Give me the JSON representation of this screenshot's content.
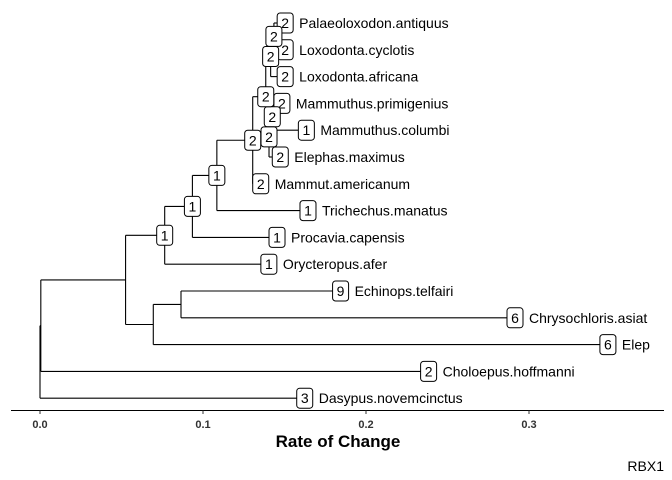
{
  "x_axis": {
    "title": "Rate of Change",
    "min": -0.018,
    "max": 0.38,
    "ticks": [
      {
        "value": 0.0,
        "label": "0.0"
      },
      {
        "value": 0.1,
        "label": "0.1"
      },
      {
        "value": 0.2,
        "label": "0.2"
      },
      {
        "value": 0.3,
        "label": "0.3"
      }
    ]
  },
  "caption": "RBX1",
  "tips": [
    {
      "id": "t1",
      "label": "Palaeoloxodon.antiquus",
      "x": 0.1455,
      "badge": "2",
      "row": 1
    },
    {
      "id": "t2",
      "label": "Loxodonta.cyclotis",
      "x": 0.1455,
      "badge": "2",
      "row": 2
    },
    {
      "id": "t3",
      "label": "Loxodonta.africana",
      "x": 0.1455,
      "badge": "2",
      "row": 3
    },
    {
      "id": "t4",
      "label": "Mammuthus.primigenius",
      "x": 0.1435,
      "badge": "2",
      "row": 4
    },
    {
      "id": "t5",
      "label": "Mammuthus.columbi",
      "x": 0.1585,
      "badge": "1",
      "row": 5
    },
    {
      "id": "t6",
      "label": "Elephas.maximus",
      "x": 0.1425,
      "badge": "2",
      "row": 6
    },
    {
      "id": "t7",
      "label": "Mammut.americanum",
      "x": 0.1305,
      "badge": "2",
      "row": 7
    },
    {
      "id": "t8",
      "label": "Trichechus.manatus",
      "x": 0.1595,
      "badge": "1",
      "row": 8
    },
    {
      "id": "t9",
      "label": "Procavia.capensis",
      "x": 0.1405,
      "badge": "1",
      "row": 9
    },
    {
      "id": "t10",
      "label": "Orycteropus.afer",
      "x": 0.1355,
      "badge": "1",
      "row": 10
    },
    {
      "id": "t11",
      "label": "Echinops.telfairi",
      "x": 0.1795,
      "badge": "9",
      "row": 11
    },
    {
      "id": "t12",
      "label": "Chrysochloris.asiat",
      "x": 0.2865,
      "badge": "6",
      "row": 12
    },
    {
      "id": "t13",
      "label": "Elep",
      "x": 0.3435,
      "badge": "6",
      "row": 13
    },
    {
      "id": "t14",
      "label": "Choloepus.hoffmanni",
      "x": 0.2335,
      "badge": "2",
      "row": 14
    },
    {
      "id": "t15",
      "label": "Dasypus.novemcinctus",
      "x": 0.1575,
      "badge": "3",
      "row": 15
    }
  ],
  "nodes": [
    {
      "id": "nPL",
      "x": 0.1435,
      "children": [
        "t1",
        "t2"
      ],
      "badge": "2"
    },
    {
      "id": "nEl",
      "x": 0.1415,
      "children": [
        "nPL",
        "t3"
      ],
      "badge": "2"
    },
    {
      "id": "nMM",
      "x": 0.1425,
      "children": [
        "t4",
        "t5"
      ],
      "badge": "2"
    },
    {
      "id": "nME",
      "x": 0.1405,
      "children": [
        "nMM",
        "t6"
      ],
      "badge": "2"
    },
    {
      "id": "nEM",
      "x": 0.1385,
      "children": [
        "nEl",
        "nME"
      ],
      "badge": "2"
    },
    {
      "id": "nPr",
      "x": 0.1305,
      "children": [
        "nEM",
        "t7"
      ],
      "badge": "2"
    },
    {
      "id": "nTe",
      "x": 0.1085,
      "children": [
        "nPr",
        "t8"
      ],
      "badge": "1"
    },
    {
      "id": "nPa",
      "x": 0.0935,
      "children": [
        "nTe",
        "t9"
      ],
      "badge": "1"
    },
    {
      "id": "nAf",
      "x": 0.0765,
      "children": [
        "nPa",
        "t10"
      ],
      "badge": "1"
    },
    {
      "id": "nTen",
      "x": 0.0865,
      "children": [
        "t11",
        "t12"
      ],
      "badge": ""
    },
    {
      "id": "nAfs",
      "x": 0.0695,
      "children": [
        "nTen",
        "t13"
      ],
      "badge": ""
    },
    {
      "id": "nAt",
      "x": 0.0525,
      "children": [
        "nAf",
        "nAfs"
      ],
      "badge": ""
    },
    {
      "id": "nX1",
      "x": 0.0005,
      "children": [
        "nAt",
        "t14"
      ],
      "badge": ""
    },
    {
      "id": "root",
      "x": 0.0,
      "children": [
        "nX1",
        "t15"
      ],
      "badge": ""
    }
  ],
  "root_id": "root"
}
